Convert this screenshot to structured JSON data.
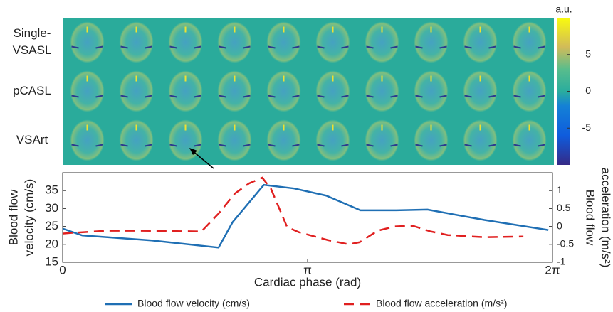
{
  "chart_data": [
    {
      "type": "image",
      "row_labels": [
        [
          "Single-",
          "VSASL"
        ],
        [
          "pCASL"
        ],
        [
          "VSArt"
        ]
      ],
      "colorbar": {
        "label": "a.u.",
        "lim": [
          -10,
          10
        ],
        "ticks": [
          5,
          0,
          -5
        ]
      }
    },
    {
      "type": "line",
      "xlabel": "Cardiac phase (rad)",
      "ylabel": [
        "Blood flow",
        "velocity (cm/s)"
      ],
      "y2label": [
        "Blood flow",
        "acceleration (m/s²)"
      ],
      "xlim": [
        0,
        6.2832
      ],
      "xticks": [
        0,
        {
          "value": 3.1416,
          "label": "π"
        },
        {
          "value": 6.2832,
          "label": "2π"
        }
      ],
      "ylim": [
        15,
        40
      ],
      "yticks": [
        15,
        20,
        25,
        30,
        35
      ],
      "y2lim": [
        -1,
        1.5
      ],
      "y2ticks": [
        -1,
        -0.5,
        0,
        0.5,
        1
      ],
      "series": [
        {
          "name": "Blood flow velocity (cm/s)",
          "color": "#1f6fb4",
          "style": "solid",
          "x": [
            0,
            0.25,
            1.14,
            2.0,
            2.18,
            2.58,
            2.97,
            3.38,
            3.82,
            4.28,
            4.68,
            5.41,
            6.23
          ],
          "values": [
            24.4,
            22.5,
            21.1,
            19.1,
            26.2,
            36.6,
            35.6,
            33.6,
            29.5,
            29.5,
            29.7,
            26.8,
            24.0
          ]
        },
        {
          "name": "Blood flow acceleration (m/s²)",
          "color": "#e02020",
          "style": "dashed",
          "axis": "y2",
          "x": [
            0,
            0.11,
            0.57,
            1.02,
            1.78,
            2.0,
            2.21,
            2.39,
            2.56,
            2.67,
            2.88,
            3.03,
            3.4,
            3.67,
            3.81,
            4.04,
            4.26,
            4.49,
            4.72,
            4.94,
            5.41,
            5.91
          ],
          "values": [
            -0.2,
            -0.18,
            -0.12,
            -0.12,
            -0.14,
            0.36,
            0.92,
            1.2,
            1.36,
            1.06,
            -0.02,
            -0.16,
            -0.38,
            -0.5,
            -0.44,
            -0.12,
            0.0,
            0.02,
            -0.14,
            -0.24,
            -0.3,
            -0.28
          ]
        }
      ]
    }
  ]
}
